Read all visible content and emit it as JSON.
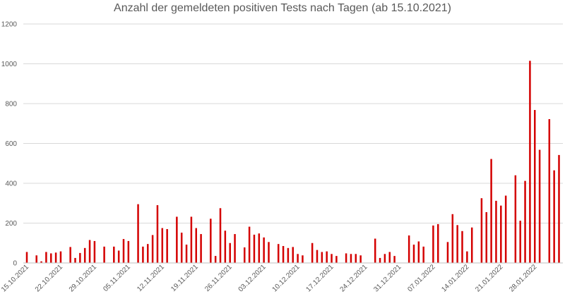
{
  "chart_data": {
    "type": "bar",
    "title": "Anzahl der gemeldeten positiven Tests nach Tagen (ab 15.10.2021)",
    "xlabel": "",
    "ylabel": "",
    "ylim": [
      0,
      1200
    ],
    "yticks": [
      0,
      200,
      400,
      600,
      800,
      1000,
      1200
    ],
    "grid": true,
    "bar_color": "#d40000",
    "x_tick_labels": [
      "15.10.2021",
      "22.10.2021",
      "29.10.2021",
      "05.11.2021",
      "12.11.2021",
      "19.11.2021",
      "26.11.2021",
      "03.12.2021",
      "10.12.2021",
      "17.12.2021",
      "24.12.2021",
      "31.12.2021",
      "07.01.2022",
      "14.01.2022",
      "21.01.2022",
      "28.01.2022"
    ],
    "start_date": "2021-10-15",
    "values": [
      55,
      0,
      38,
      8,
      55,
      48,
      52,
      58,
      0,
      80,
      25,
      50,
      75,
      115,
      110,
      0,
      82,
      0,
      82,
      62,
      120,
      110,
      0,
      295,
      82,
      95,
      140,
      290,
      175,
      170,
      0,
      232,
      152,
      92,
      232,
      175,
      145,
      0,
      222,
      35,
      275,
      162,
      100,
      145,
      0,
      78,
      182,
      142,
      148,
      128,
      105,
      0,
      95,
      85,
      75,
      80,
      45,
      38,
      0,
      100,
      65,
      55,
      58,
      45,
      35,
      0,
      48,
      45,
      45,
      38,
      0,
      0,
      122,
      25,
      45,
      55,
      35,
      0,
      0,
      138,
      92,
      108,
      82,
      0,
      188,
      195,
      0,
      105,
      245,
      190,
      160,
      58,
      178,
      0,
      325,
      255,
      522,
      312,
      288,
      338,
      0,
      440,
      212,
      412,
      1015,
      768,
      568,
      0,
      722,
      465,
      542
    ]
  }
}
